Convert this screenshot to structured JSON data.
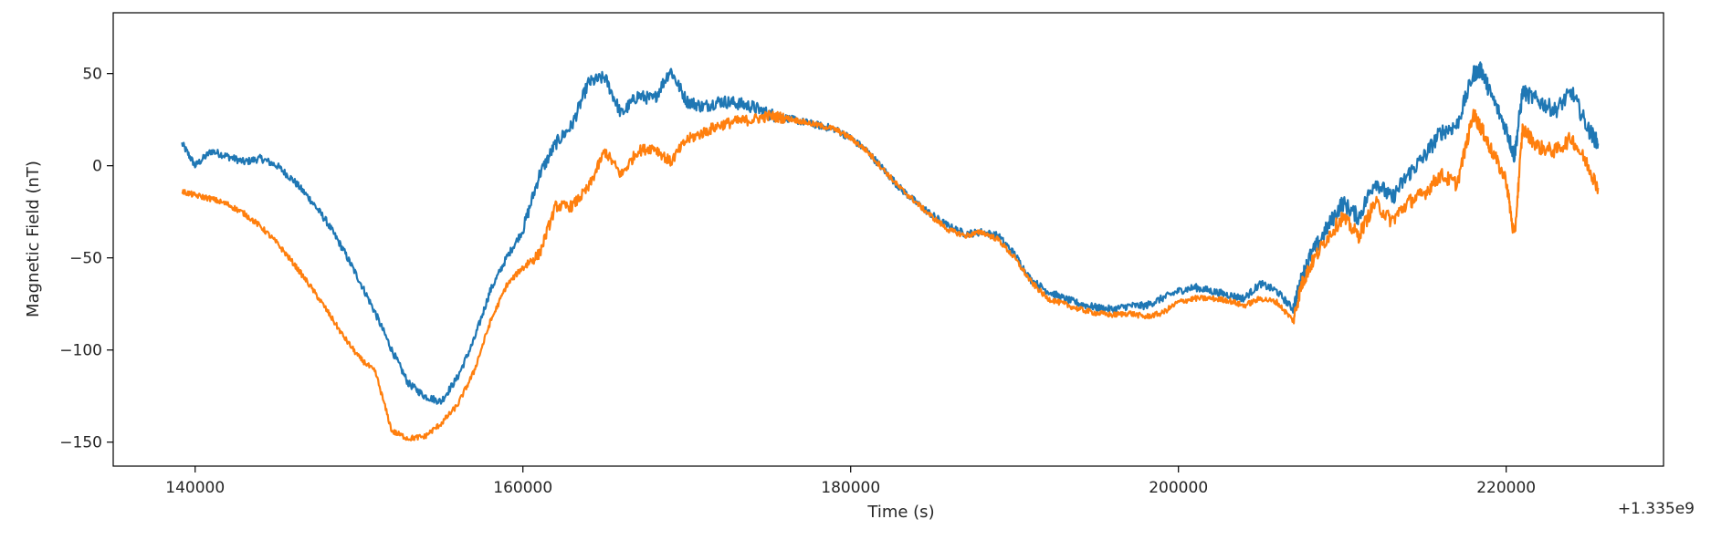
{
  "chart_data": {
    "type": "line",
    "title": "",
    "xlabel": "Time (s)",
    "ylabel": "Magnetic Field (nT)",
    "x_offset_label": "+1.335e9",
    "xlim": [
      135000,
      229600
    ],
    "ylim": [
      -163,
      83
    ],
    "xticks": [
      140000,
      160000,
      180000,
      200000,
      220000
    ],
    "xtick_labels": [
      "140000",
      "160000",
      "180000",
      "200000",
      "220000"
    ],
    "yticks": [
      50,
      0,
      -50,
      -100,
      -150
    ],
    "ytick_labels": [
      "50",
      "0",
      "−50",
      "−100",
      "−150"
    ],
    "grid": false,
    "legend": "none",
    "colors": [
      "#1f77b4",
      "#ff7f0e"
    ],
    "series": [
      {
        "x": [
          139200,
          140000,
          141000,
          142000,
          143000,
          144000,
          145000,
          146000,
          147000,
          148000,
          149000,
          150000,
          151000,
          152000,
          153000,
          154000,
          155000,
          156000,
          157000,
          158000,
          159000,
          160000,
          161000,
          162000,
          163000,
          164000,
          165000,
          166000,
          167000,
          168000,
          169000,
          170000,
          171000,
          172000,
          173000,
          174000,
          175000,
          176000,
          177000,
          178000,
          179000,
          180000,
          181000,
          182000,
          183000,
          184000,
          185000,
          186000,
          187000,
          188000,
          189000,
          190000,
          191000,
          192000,
          193000,
          194000,
          195000,
          196000,
          197000,
          198000,
          199000,
          200000,
          201000,
          202000,
          203000,
          204000,
          205000,
          206000,
          207000,
          207500,
          208000,
          209000,
          210000,
          211000,
          212000,
          213000,
          214000,
          215000,
          216000,
          217000,
          218000,
          218500,
          219000,
          220000,
          220500,
          221000,
          222000,
          223000,
          224000,
          225000,
          225600
        ],
        "y": [
          12,
          0,
          8,
          5,
          2,
          4,
          0,
          -8,
          -18,
          -30,
          -45,
          -62,
          -80,
          -100,
          -118,
          -125,
          -128,
          -115,
          -95,
          -68,
          -50,
          -35,
          -5,
          12,
          22,
          45,
          48,
          28,
          38,
          36,
          52,
          35,
          32,
          35,
          34,
          32,
          28,
          26,
          24,
          22,
          20,
          15,
          8,
          -2,
          -12,
          -20,
          -27,
          -33,
          -37,
          -36,
          -38,
          -48,
          -62,
          -68,
          -72,
          -75,
          -77,
          -78,
          -76,
          -76,
          -72,
          -68,
          -66,
          -68,
          -70,
          -72,
          -64,
          -68,
          -78,
          -62,
          -50,
          -35,
          -20,
          -28,
          -8,
          -18,
          -5,
          5,
          18,
          22,
          50,
          52,
          40,
          20,
          5,
          40,
          35,
          30,
          40,
          20,
          12
        ]
      },
      {
        "x": [
          139200,
          140000,
          141000,
          142000,
          143000,
          144000,
          145000,
          146000,
          147000,
          148000,
          149000,
          150000,
          151000,
          152000,
          153000,
          154000,
          155000,
          156000,
          157000,
          158000,
          159000,
          160000,
          161000,
          162000,
          163000,
          164000,
          165000,
          166000,
          167000,
          168000,
          169000,
          170000,
          171000,
          172000,
          173000,
          174000,
          175000,
          176000,
          177000,
          178000,
          179000,
          180000,
          181000,
          182000,
          183000,
          184000,
          185000,
          186000,
          187000,
          188000,
          189000,
          190000,
          191000,
          192000,
          193000,
          194000,
          195000,
          196000,
          197000,
          198000,
          199000,
          200000,
          201000,
          202000,
          203000,
          204000,
          205000,
          206000,
          207000,
          207500,
          208000,
          209000,
          210000,
          211000,
          212000,
          213000,
          214000,
          215000,
          216000,
          217000,
          218000,
          218500,
          219000,
          220000,
          220500,
          221000,
          222000,
          223000,
          224000,
          225000,
          225600
        ],
        "y": [
          -14,
          -16,
          -18,
          -21,
          -26,
          -33,
          -42,
          -53,
          -65,
          -78,
          -92,
          -104,
          -112,
          -144,
          -148,
          -147,
          -140,
          -130,
          -112,
          -85,
          -65,
          -55,
          -48,
          -22,
          -22,
          -12,
          8,
          -5,
          8,
          10,
          2,
          14,
          18,
          22,
          24,
          25,
          27,
          26,
          24,
          22,
          20,
          15,
          8,
          -2,
          -12,
          -20,
          -28,
          -35,
          -38,
          -36,
          -40,
          -50,
          -63,
          -72,
          -75,
          -78,
          -80,
          -81,
          -80,
          -82,
          -80,
          -74,
          -72,
          -72,
          -73,
          -76,
          -72,
          -74,
          -84,
          -65,
          -55,
          -40,
          -28,
          -38,
          -20,
          -30,
          -20,
          -15,
          -5,
          -10,
          28,
          20,
          10,
          -8,
          -40,
          20,
          10,
          8,
          15,
          0,
          -12
        ]
      }
    ]
  }
}
